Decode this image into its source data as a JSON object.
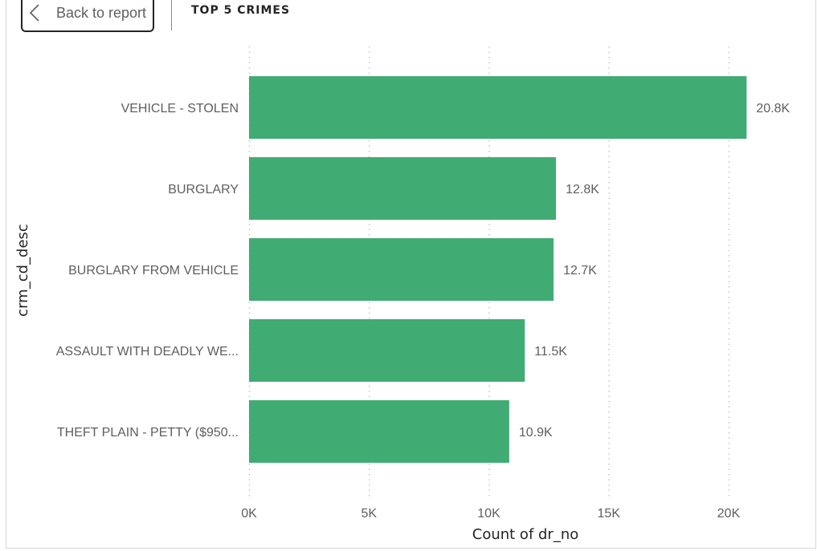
{
  "header": {
    "back_label": "Back to report",
    "title": "TOP 5 CRIMES"
  },
  "chart_data": {
    "type": "bar",
    "orientation": "horizontal",
    "categories": [
      "VEHICLE - STOLEN",
      "BURGLARY",
      "BURGLARY FROM VEHICLE",
      "ASSAULT WITH DEADLY WE...",
      "THEFT PLAIN - PETTY ($950..."
    ],
    "values": [
      20750,
      12800,
      12700,
      11500,
      10850
    ],
    "data_labels": [
      "20.8K",
      "12.8K",
      "12.7K",
      "11.5K",
      "10.9K"
    ],
    "xticks": [
      0,
      5000,
      10000,
      15000,
      20000
    ],
    "xtick_labels": [
      "0K",
      "5K",
      "10K",
      "15K",
      "20K"
    ],
    "xlim": [
      0,
      23500
    ],
    "xlabel": "Count of dr_no",
    "ylabel": "crm_cd_desc",
    "grid": "vertical-dotted",
    "bar_color": "#41ab74"
  }
}
